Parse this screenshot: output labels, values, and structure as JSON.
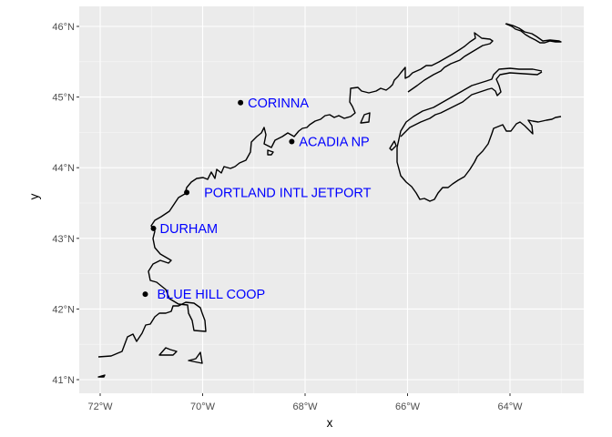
{
  "chart_data": {
    "type": "map",
    "panel_background": "#EBEBEB",
    "grid_color": "#FFFFFF",
    "coastline_color": "#000000",
    "point_color": "#000000",
    "label_color": "#0000FF",
    "xlabel": "x",
    "ylabel": "y",
    "xlim": [
      -72.5,
      -62.6
    ],
    "ylim": [
      40.85,
      46.3
    ],
    "x_ticks": [
      {
        "value": -72,
        "label": "72°W"
      },
      {
        "value": -70,
        "label": "70°W"
      },
      {
        "value": -68,
        "label": "68°W"
      },
      {
        "value": -66,
        "label": "66°W"
      },
      {
        "value": -64,
        "label": "64°W"
      }
    ],
    "y_ticks": [
      {
        "value": 41,
        "label": "41°N"
      },
      {
        "value": 42,
        "label": "42°N"
      },
      {
        "value": 43,
        "label": "43°N"
      },
      {
        "value": 44,
        "label": "44°N"
      },
      {
        "value": 45,
        "label": "45°N"
      },
      {
        "value": 46,
        "label": "46°N"
      }
    ],
    "stations": [
      {
        "name": "CORINNA",
        "lon": -69.26,
        "lat": 44.92
      },
      {
        "name": "ACADIA NP",
        "lon": -68.26,
        "lat": 44.37
      },
      {
        "name": "PORTLAND INTL JETPORT",
        "lon": -70.31,
        "lat": 43.65
      },
      {
        "name": "DURHAM",
        "lon": -70.96,
        "lat": 43.14
      },
      {
        "name": "BLUE HILL COOP",
        "lon": -71.12,
        "lat": 42.21
      }
    ]
  }
}
